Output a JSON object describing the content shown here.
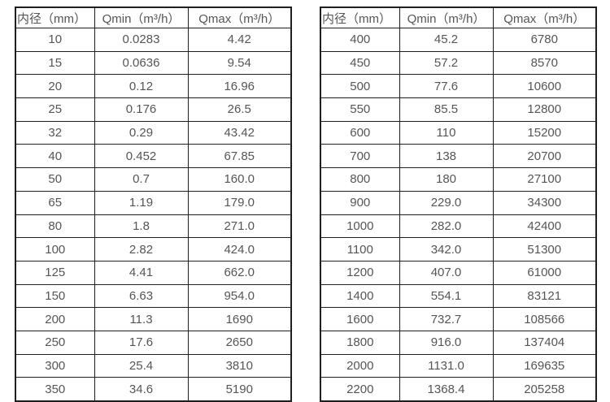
{
  "colors": {
    "border": "#1f1f1f",
    "text": "#555555",
    "background": "#ffffff"
  },
  "tables": [
    {
      "name": "flow-rate-table-small-diameters",
      "headers": [
        "内径（mm）",
        "Qmin（m³/h）",
        "Qmax（m³/h）"
      ],
      "rows": [
        [
          "10",
          "0.0283",
          "4.42"
        ],
        [
          "15",
          "0.0636",
          "9.54"
        ],
        [
          "20",
          "0.12",
          "16.96"
        ],
        [
          "25",
          "0.176",
          "26.5"
        ],
        [
          "32",
          "0.29",
          "43.42"
        ],
        [
          "40",
          "0.452",
          "67.85"
        ],
        [
          "50",
          "0.7",
          "160.0"
        ],
        [
          "65",
          "1.19",
          "179.0"
        ],
        [
          "80",
          "1.8",
          "271.0"
        ],
        [
          "100",
          "2.82",
          "424.0"
        ],
        [
          "125",
          "4.41",
          "662.0"
        ],
        [
          "150",
          "6.63",
          "954.0"
        ],
        [
          "200",
          "11.3",
          "1690"
        ],
        [
          "250",
          "17.6",
          "2650"
        ],
        [
          "300",
          "25.4",
          "3810"
        ],
        [
          "350",
          "34.6",
          "5190"
        ]
      ]
    },
    {
      "name": "flow-rate-table-large-diameters",
      "headers": [
        "内径（mm）",
        "Qmin（m³/h）",
        "Qmax（m³/h）"
      ],
      "rows": [
        [
          "400",
          "45.2",
          "6780"
        ],
        [
          "450",
          "57.2",
          "8570"
        ],
        [
          "500",
          "77.6",
          "10600"
        ],
        [
          "550",
          "85.5",
          "12800"
        ],
        [
          "600",
          "110",
          "15200"
        ],
        [
          "700",
          "138",
          "20700"
        ],
        [
          "800",
          "180",
          "27100"
        ],
        [
          "900",
          "229.0",
          "34300"
        ],
        [
          "1000",
          "282.0",
          "42400"
        ],
        [
          "1100",
          "342.0",
          "51300"
        ],
        [
          "1200",
          "407.0",
          "61000"
        ],
        [
          "1400",
          "554.1",
          "83121"
        ],
        [
          "1600",
          "732.7",
          "108566"
        ],
        [
          "1800",
          "916.0",
          "137404"
        ],
        [
          "2000",
          "1131.0",
          "169635"
        ],
        [
          "2200",
          "1368.4",
          "205258"
        ]
      ]
    }
  ]
}
